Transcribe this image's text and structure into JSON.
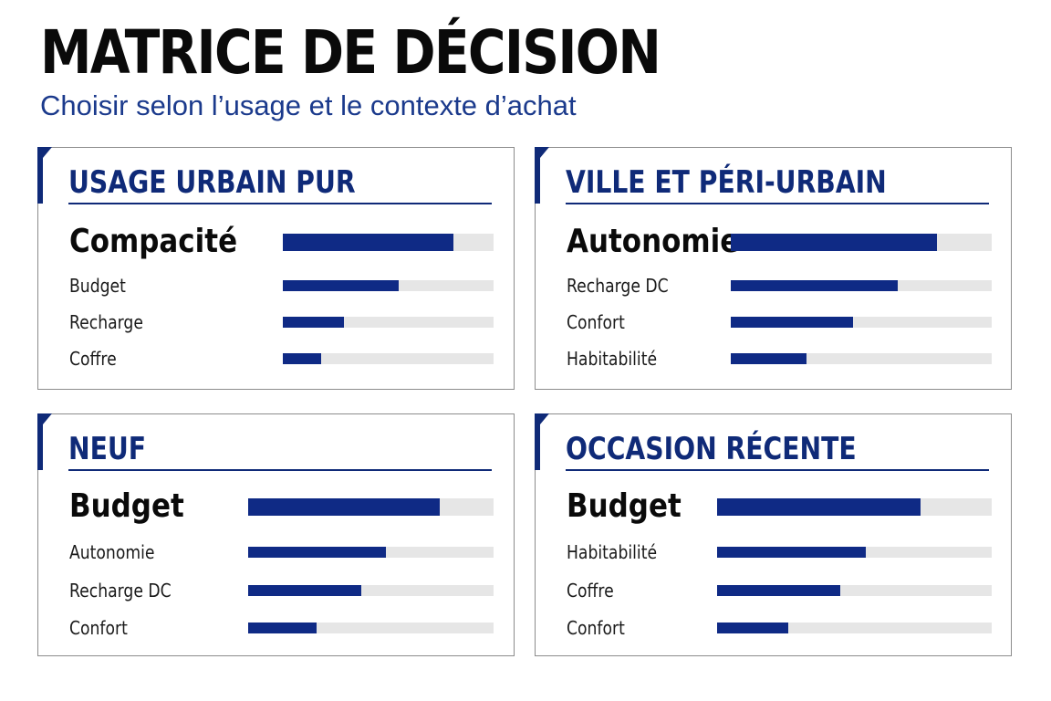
{
  "title": "MATRICE DE DÉCISION",
  "subtitle": "Choisir selon l’usage et le contexte d’achat",
  "colors": {
    "accent": "#0f2a78",
    "bar": "#0f2a85",
    "track": "#e6e6e6",
    "subtitle": "#1b3a8c",
    "border": "#8c8c8c"
  },
  "chart_data": [
    {
      "type": "bar",
      "orientation": "horizontal",
      "title": "USAGE URBAIN PUR",
      "categories": [
        "Compacité",
        "Budget",
        "Recharge",
        "Coffre"
      ],
      "values": [
        0.81,
        0.55,
        0.29,
        0.18
      ],
      "xlim": [
        0,
        1
      ],
      "grid": false
    },
    {
      "type": "bar",
      "orientation": "horizontal",
      "title": "VILLE ET PÉRI-URBAIN",
      "categories": [
        "Autonomie",
        "Recharge DC",
        "Confort",
        "Habitabilité"
      ],
      "values": [
        0.79,
        0.64,
        0.47,
        0.29
      ],
      "xlim": [
        0,
        1
      ],
      "grid": false
    },
    {
      "type": "bar",
      "orientation": "horizontal",
      "title": "NEUF",
      "categories": [
        "Budget",
        "Autonomie",
        "Recharge DC",
        "Confort"
      ],
      "values": [
        0.78,
        0.56,
        0.46,
        0.28
      ],
      "xlim": [
        0,
        1
      ],
      "grid": false
    },
    {
      "type": "bar",
      "orientation": "horizontal",
      "title": "OCCASION RÉCENTE",
      "categories": [
        "Budget",
        "Habitabilité",
        "Coffre",
        "Confort"
      ],
      "values": [
        0.74,
        0.54,
        0.45,
        0.26
      ],
      "xlim": [
        0,
        1
      ],
      "grid": false
    }
  ]
}
